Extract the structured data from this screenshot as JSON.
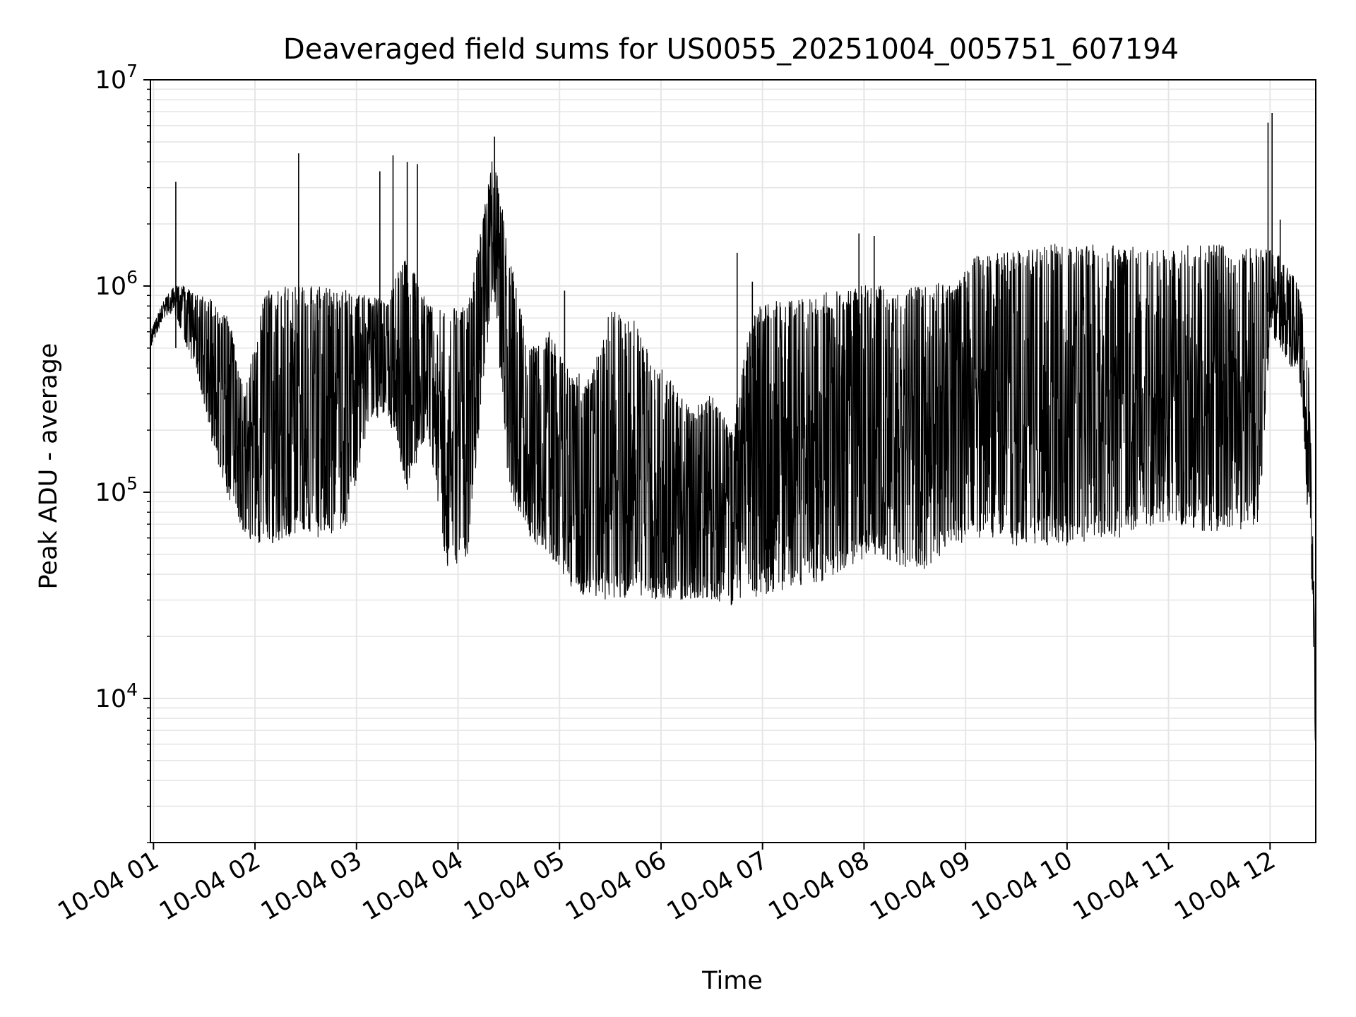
{
  "chart_data": {
    "type": "line",
    "title": "Deaveraged field sums for US0055_20251004_005751_607194",
    "xlabel": "Time",
    "ylabel": "Peak ADU - average",
    "yscale": "log",
    "ylim": [
      2000,
      10000000
    ],
    "xlim_hours": [
      0.97,
      12.45
    ],
    "grid": true,
    "x_tick_labels": [
      "10-04 01",
      "10-04 02",
      "10-04 03",
      "10-04 04",
      "10-04 05",
      "10-04 06",
      "10-04 07",
      "10-04 08",
      "10-04 09",
      "10-04 10",
      "10-04 11",
      "10-04 12"
    ],
    "x_tick_hours": [
      1,
      2,
      3,
      4,
      5,
      6,
      7,
      8,
      9,
      10,
      11,
      12
    ],
    "y_ticks": [
      {
        "value": 10000,
        "base": "10",
        "exp": "4"
      },
      {
        "value": 100000,
        "base": "10",
        "exp": "5"
      },
      {
        "value": 1000000,
        "base": "10",
        "exp": "6"
      },
      {
        "value": 10000000,
        "base": "10",
        "exp": "7"
      }
    ],
    "series": [
      {
        "name": "Peak ADU - average",
        "color": "#000000",
        "envelope_note": "Dense noisy time series summarized as upper/lower envelope per time point (hours since 10-04 00:00)",
        "x": [
          0.97,
          1.1,
          1.2,
          1.3,
          1.45,
          1.6,
          1.75,
          1.9,
          2.1,
          2.3,
          2.5,
          2.7,
          2.9,
          3.1,
          3.3,
          3.5,
          3.7,
          3.9,
          4.1,
          4.35,
          4.5,
          4.7,
          4.9,
          5.1,
          5.3,
          5.5,
          5.7,
          5.9,
          6.1,
          6.3,
          6.5,
          6.7,
          6.9,
          7.1,
          7.3,
          7.5,
          7.7,
          7.9,
          8.1,
          8.3,
          8.5,
          8.7,
          8.9,
          9.1,
          9.3,
          9.5,
          9.7,
          9.9,
          10.1,
          10.3,
          10.5,
          10.7,
          10.9,
          11.1,
          11.3,
          11.5,
          11.7,
          11.9,
          12.0,
          12.1,
          12.2,
          12.28,
          12.33,
          12.38,
          12.42,
          12.45
        ],
        "upper": [
          600000,
          850000,
          1000000,
          1000000,
          900000,
          850000,
          700000,
          300000,
          1000000,
          1000000,
          1000000,
          1000000,
          950000,
          900000,
          850000,
          1500000,
          800000,
          800000,
          800000,
          4500000,
          1500000,
          500000,
          600000,
          400000,
          350000,
          800000,
          750000,
          450000,
          350000,
          250000,
          300000,
          200000,
          800000,
          850000,
          850000,
          900000,
          950000,
          1000000,
          1100000,
          900000,
          1000000,
          1100000,
          1000000,
          1400000,
          1450000,
          1500000,
          1550000,
          1600000,
          1550000,
          1600000,
          1600000,
          1600000,
          1500000,
          1550000,
          1600000,
          1600000,
          1600000,
          1500000,
          1500000,
          1400000,
          1200000,
          1000000,
          700000,
          400000,
          80000,
          10000
        ],
        "lower": [
          500000,
          700000,
          750000,
          550000,
          350000,
          150000,
          90000,
          60000,
          55000,
          60000,
          60000,
          60000,
          65000,
          200000,
          250000,
          100000,
          200000,
          40000,
          50000,
          1000000,
          100000,
          60000,
          50000,
          35000,
          30000,
          30000,
          30000,
          30000,
          30000,
          30000,
          30000,
          28000,
          30000,
          32000,
          35000,
          35000,
          40000,
          45000,
          50000,
          45000,
          40000,
          45000,
          55000,
          60000,
          60000,
          55000,
          55000,
          55000,
          55000,
          60000,
          60000,
          65000,
          70000,
          70000,
          65000,
          65000,
          65000,
          70000,
          600000,
          500000,
          400000,
          400000,
          200000,
          60000,
          30000,
          4000
        ]
      }
    ],
    "spikes": [
      {
        "x": 1.22,
        "y": 3200000
      },
      {
        "x": 2.43,
        "y": 4400000
      },
      {
        "x": 3.23,
        "y": 3600000
      },
      {
        "x": 3.36,
        "y": 4300000
      },
      {
        "x": 3.5,
        "y": 4000000
      },
      {
        "x": 3.6,
        "y": 3900000
      },
      {
        "x": 4.36,
        "y": 5300000
      },
      {
        "x": 5.05,
        "y": 950000
      },
      {
        "x": 6.75,
        "y": 1450000
      },
      {
        "x": 6.9,
        "y": 1050000
      },
      {
        "x": 7.95,
        "y": 1800000
      },
      {
        "x": 8.1,
        "y": 1750000
      },
      {
        "x": 11.98,
        "y": 6200000
      },
      {
        "x": 12.02,
        "y": 6900000
      },
      {
        "x": 12.1,
        "y": 2100000
      }
    ]
  }
}
